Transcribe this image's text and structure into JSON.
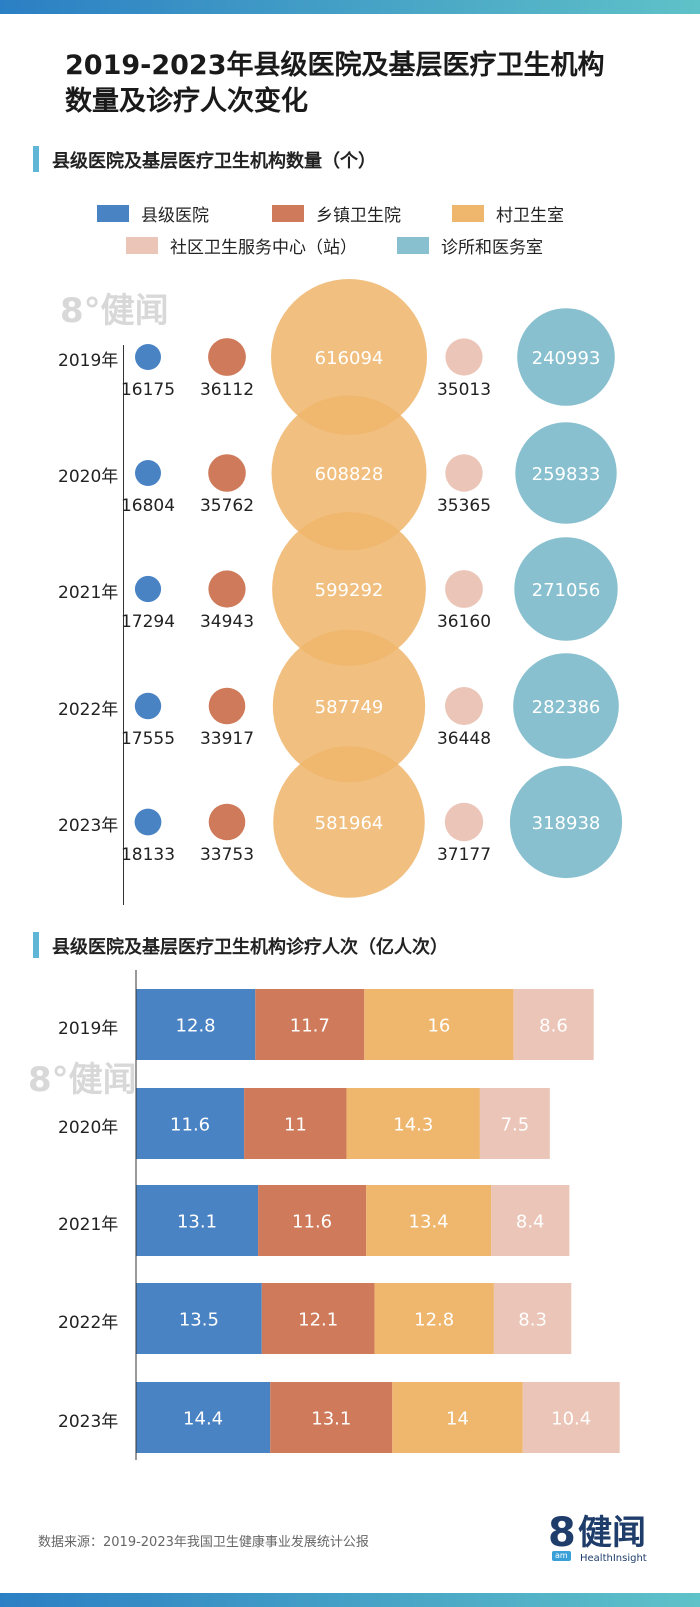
{
  "title_line1": "2019-2023年县级医院及基层医疗卫生机构",
  "title_line2": "数量及诊疗人次变化",
  "section1_title": "县级医院及基层医疗卫生机构数量（个）",
  "section2_title": "县级医院及基层医疗卫生机构诊疗人次（亿人次）",
  "source_text": "数据来源：2019-2023年我国卫生健康事业发展统计公报",
  "logo": {
    "mark": "8",
    "name": "健闻",
    "sub": "HealthInsight",
    "tag": "am"
  },
  "colors": {
    "county": "#4a83c3",
    "township": "#cf7b5b",
    "village": "#efb66d",
    "community": "#ebc5b7",
    "clinic": "#88c0cf"
  },
  "legend": [
    {
      "label": "县级医院",
      "color": "#4a83c3"
    },
    {
      "label": "乡镇卫生院",
      "color": "#cf7b5b"
    },
    {
      "label": "村卫生室",
      "color": "#efb66d"
    },
    {
      "label": "社区卫生服务中心（站）",
      "color": "#ebc5b7"
    },
    {
      "label": "诊所和医务室",
      "color": "#88c0cf"
    }
  ],
  "chart_data": [
    {
      "type": "scatter",
      "subtype": "bubble",
      "title": "县级医院及基层医疗卫生机构数量（个）",
      "categories": [
        "2019年",
        "2020年",
        "2021年",
        "2022年",
        "2023年"
      ],
      "series": [
        {
          "name": "县级医院",
          "values": [
            16175,
            16804,
            17294,
            17555,
            18133
          ]
        },
        {
          "name": "乡镇卫生院",
          "values": [
            36112,
            35762,
            34943,
            33917,
            33753
          ]
        },
        {
          "name": "村卫生室",
          "values": [
            616094,
            608828,
            599292,
            587749,
            581964
          ]
        },
        {
          "name": "社区卫生服务中心（站）",
          "values": [
            35013,
            35365,
            36160,
            36448,
            37177
          ]
        },
        {
          "name": "诊所和医务室",
          "values": [
            240993,
            259833,
            271056,
            282386,
            318938
          ]
        }
      ],
      "legend": "top"
    },
    {
      "type": "bar",
      "orientation": "horizontal",
      "stacked": true,
      "title": "县级医院及基层医疗卫生机构诊疗人次（亿人次）",
      "categories": [
        "2019年",
        "2020年",
        "2021年",
        "2022年",
        "2023年"
      ],
      "series": [
        {
          "name": "县级医院",
          "values": [
            12.8,
            11.6,
            13.1,
            13.5,
            14.4
          ]
        },
        {
          "name": "乡镇卫生院",
          "values": [
            11.7,
            11,
            11.6,
            12.1,
            13.1
          ]
        },
        {
          "name": "村卫生室",
          "values": [
            16,
            14.3,
            13.4,
            12.8,
            14
          ]
        },
        {
          "name": "社区卫生服务中心（站）",
          "values": [
            8.6,
            7.5,
            8.4,
            8.3,
            10.4
          ]
        }
      ]
    }
  ]
}
